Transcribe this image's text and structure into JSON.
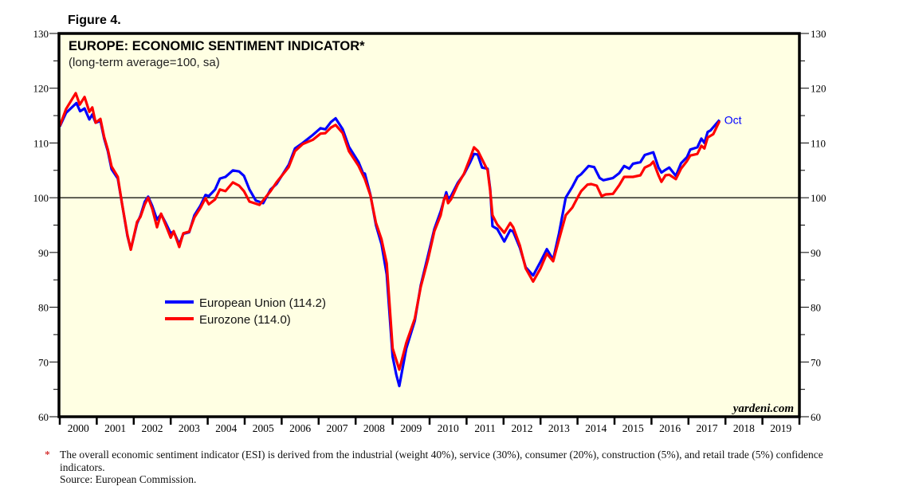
{
  "figure_label": "Figure 4.",
  "footnote_marker": "*",
  "footnote": "The overall economic sentiment indicator (ESI) is derived from the industrial (weight 40%), service (30%), consumer (20%), construction (5%), and retail trade (5%) confidence indicators.",
  "source": "Source: European Commission.",
  "watermark": "yardeni.com",
  "chart_data": {
    "type": "line",
    "title": "EUROPE: ECONOMIC SENTIMENT INDICATOR*",
    "subtitle": "(long-term average=100, sa)",
    "xlabel": "",
    "ylabel": "",
    "ylim": [
      60,
      130
    ],
    "xlim": [
      2000,
      2020
    ],
    "y_ticks": [
      60,
      70,
      80,
      90,
      100,
      110,
      120,
      130
    ],
    "x_tick_labels": [
      "2000",
      "2001",
      "2002",
      "2003",
      "2004",
      "2005",
      "2006",
      "2007",
      "2008",
      "2009",
      "2010",
      "2011",
      "2012",
      "2013",
      "2014",
      "2015",
      "2016",
      "2017",
      "2018",
      "2019"
    ],
    "reference_line": 100,
    "last_point_label": "Oct",
    "legend_placement": "center-left",
    "colors": {
      "background": "#FFFFE3",
      "eu": "#0000FF",
      "ez": "#FF0000"
    },
    "series": [
      {
        "name": "European Union (114.2)",
        "color": "#0000FF",
        "points": [
          [
            2000.0,
            113
          ],
          [
            2000.17,
            115.5
          ],
          [
            2000.45,
            117.3
          ],
          [
            2000.55,
            115.8
          ],
          [
            2000.67,
            116.3
          ],
          [
            2000.8,
            114.3
          ],
          [
            2000.88,
            115.2
          ],
          [
            2000.97,
            113.7
          ],
          [
            2001.1,
            114.0
          ],
          [
            2001.2,
            110.8
          ],
          [
            2001.3,
            108.5
          ],
          [
            2001.4,
            105.2
          ],
          [
            2001.57,
            103.5
          ],
          [
            2001.68,
            99
          ],
          [
            2001.83,
            93
          ],
          [
            2001.92,
            90.6
          ],
          [
            2002.09,
            95.3
          ],
          [
            2002.18,
            96.7
          ],
          [
            2002.3,
            99.3
          ],
          [
            2002.39,
            100.2
          ],
          [
            2002.5,
            98.5
          ],
          [
            2002.63,
            96.0
          ],
          [
            2002.74,
            97.0
          ],
          [
            2002.87,
            95.3
          ],
          [
            2003.0,
            93.5
          ],
          [
            2003.08,
            93.8
          ],
          [
            2003.23,
            91.5
          ],
          [
            2003.34,
            93.4
          ],
          [
            2003.5,
            93.7
          ],
          [
            2003.64,
            96.8
          ],
          [
            2003.8,
            98.5
          ],
          [
            2003.94,
            100.5
          ],
          [
            2004.03,
            100.3
          ],
          [
            2004.2,
            101.5
          ],
          [
            2004.33,
            103.5
          ],
          [
            2004.48,
            103.8
          ],
          [
            2004.6,
            104.5
          ],
          [
            2004.68,
            105.0
          ],
          [
            2004.85,
            104.8
          ],
          [
            2004.98,
            104.0
          ],
          [
            2005.13,
            101.5
          ],
          [
            2005.3,
            99.5
          ],
          [
            2005.5,
            99.0
          ],
          [
            2005.7,
            101.5
          ],
          [
            2005.86,
            102.5
          ],
          [
            2006.19,
            106
          ],
          [
            2006.36,
            109
          ],
          [
            2006.57,
            110
          ],
          [
            2006.85,
            111.5
          ],
          [
            2007.05,
            112.7
          ],
          [
            2007.18,
            112.5
          ],
          [
            2007.33,
            113.8
          ],
          [
            2007.46,
            114.5
          ],
          [
            2007.65,
            112.5
          ],
          [
            2007.82,
            109.3
          ],
          [
            2008.08,
            106.5
          ],
          [
            2008.2,
            104.5
          ],
          [
            2008.25,
            104.4
          ],
          [
            2008.4,
            100.5
          ],
          [
            2008.55,
            95
          ],
          [
            2008.7,
            91.5
          ],
          [
            2008.84,
            86
          ],
          [
            2009.0,
            71
          ],
          [
            2009.1,
            67.7
          ],
          [
            2009.18,
            65.6
          ],
          [
            2009.37,
            72.5
          ],
          [
            2009.6,
            77.5
          ],
          [
            2009.76,
            84
          ],
          [
            2009.96,
            89.5
          ],
          [
            2010.13,
            94.3
          ],
          [
            2010.3,
            97.5
          ],
          [
            2010.45,
            101
          ],
          [
            2010.5,
            99.8
          ],
          [
            2010.58,
            100.3
          ],
          [
            2010.76,
            102.7
          ],
          [
            2010.93,
            104.3
          ],
          [
            2011.1,
            106.5
          ],
          [
            2011.2,
            108
          ],
          [
            2011.3,
            107.9
          ],
          [
            2011.42,
            105.5
          ],
          [
            2011.57,
            105.3
          ],
          [
            2011.64,
            101.5
          ],
          [
            2011.7,
            94.8
          ],
          [
            2011.83,
            94.3
          ],
          [
            2012.02,
            92.0
          ],
          [
            2012.18,
            94.1
          ],
          [
            2012.26,
            93.8
          ],
          [
            2012.44,
            90.9
          ],
          [
            2012.6,
            87.3
          ],
          [
            2012.8,
            85.8
          ],
          [
            2013.0,
            88.3
          ],
          [
            2013.17,
            90.6
          ],
          [
            2013.34,
            88.7
          ],
          [
            2013.5,
            93.5
          ],
          [
            2013.68,
            100
          ],
          [
            2013.86,
            102
          ],
          [
            2014.0,
            103.8
          ],
          [
            2014.1,
            104.3
          ],
          [
            2014.3,
            105.8
          ],
          [
            2014.45,
            105.6
          ],
          [
            2014.6,
            103.6
          ],
          [
            2014.7,
            103.2
          ],
          [
            2014.96,
            103.6
          ],
          [
            2015.13,
            104.5
          ],
          [
            2015.26,
            105.8
          ],
          [
            2015.4,
            105.3
          ],
          [
            2015.5,
            106.2
          ],
          [
            2015.7,
            106.5
          ],
          [
            2015.82,
            107.8
          ],
          [
            2016.05,
            108.3
          ],
          [
            2016.19,
            105.5
          ],
          [
            2016.27,
            104.6
          ],
          [
            2016.38,
            105.1
          ],
          [
            2016.48,
            105.5
          ],
          [
            2016.66,
            104.0
          ],
          [
            2016.8,
            106.3
          ],
          [
            2016.96,
            107.4
          ],
          [
            2017.05,
            108.8
          ],
          [
            2017.24,
            109.2
          ],
          [
            2017.35,
            110.8
          ],
          [
            2017.43,
            110.0
          ],
          [
            2017.52,
            112.0
          ],
          [
            2017.6,
            112.3
          ],
          [
            2017.84,
            114.2
          ]
        ]
      },
      {
        "name": "Eurozone (114.0)",
        "color": "#FF0000",
        "points": [
          [
            2000.0,
            113.1
          ],
          [
            2000.17,
            116.2
          ],
          [
            2000.43,
            119.1
          ],
          [
            2000.54,
            117.0
          ],
          [
            2000.67,
            118.4
          ],
          [
            2000.8,
            115.7
          ],
          [
            2000.88,
            116.5
          ],
          [
            2000.97,
            113.7
          ],
          [
            2001.1,
            114.4
          ],
          [
            2001.2,
            111.1
          ],
          [
            2001.3,
            108.8
          ],
          [
            2001.4,
            105.7
          ],
          [
            2001.57,
            103.8
          ],
          [
            2001.68,
            99.0
          ],
          [
            2001.83,
            93.2
          ],
          [
            2001.92,
            90.5
          ],
          [
            2002.09,
            95.6
          ],
          [
            2002.18,
            96.5
          ],
          [
            2002.3,
            98.8
          ],
          [
            2002.39,
            100
          ],
          [
            2002.5,
            98
          ],
          [
            2002.63,
            94.6
          ],
          [
            2002.74,
            97.1
          ],
          [
            2002.87,
            94.9
          ],
          [
            2003.0,
            92.7
          ],
          [
            2003.08,
            93.9
          ],
          [
            2003.23,
            91
          ],
          [
            2003.34,
            93.5
          ],
          [
            2003.5,
            93.8
          ],
          [
            2003.64,
            96.4
          ],
          [
            2003.8,
            98.1
          ],
          [
            2003.94,
            99.9
          ],
          [
            2004.03,
            98.8
          ],
          [
            2004.2,
            99.7
          ],
          [
            2004.33,
            101.5
          ],
          [
            2004.48,
            101.2
          ],
          [
            2004.68,
            102.8
          ],
          [
            2004.85,
            102.2
          ],
          [
            2004.98,
            101.2
          ],
          [
            2005.13,
            99.3
          ],
          [
            2005.4,
            98.7
          ],
          [
            2005.7,
            101.2
          ],
          [
            2005.86,
            102.8
          ],
          [
            2006.19,
            105.6
          ],
          [
            2006.36,
            108.5
          ],
          [
            2006.57,
            109.8
          ],
          [
            2006.85,
            110.6
          ],
          [
            2007.05,
            111.7
          ],
          [
            2007.18,
            111.8
          ],
          [
            2007.33,
            112.8
          ],
          [
            2007.46,
            113.3
          ],
          [
            2007.65,
            111.8
          ],
          [
            2007.82,
            108.5
          ],
          [
            2008.08,
            105.8
          ],
          [
            2008.25,
            103.4
          ],
          [
            2008.4,
            100.4
          ],
          [
            2008.55,
            95.4
          ],
          [
            2008.7,
            92.4
          ],
          [
            2008.84,
            88
          ],
          [
            2009.0,
            72.5
          ],
          [
            2009.18,
            68.6
          ],
          [
            2009.37,
            73.5
          ],
          [
            2009.6,
            77.9
          ],
          [
            2009.76,
            83.7
          ],
          [
            2009.96,
            88.8
          ],
          [
            2010.13,
            93.9
          ],
          [
            2010.3,
            96.8
          ],
          [
            2010.39,
            99.7
          ],
          [
            2010.45,
            100.4
          ],
          [
            2010.5,
            99
          ],
          [
            2010.58,
            99.7
          ],
          [
            2010.76,
            102.4
          ],
          [
            2010.93,
            104.4
          ],
          [
            2011.1,
            107.3
          ],
          [
            2011.2,
            109.2
          ],
          [
            2011.31,
            108.5
          ],
          [
            2011.42,
            107
          ],
          [
            2011.57,
            105
          ],
          [
            2011.64,
            101.2
          ],
          [
            2011.7,
            96.8
          ],
          [
            2011.83,
            95.1
          ],
          [
            2012.02,
            93.6
          ],
          [
            2012.18,
            95.4
          ],
          [
            2012.26,
            94.6
          ],
          [
            2012.44,
            91.3
          ],
          [
            2012.6,
            87.1
          ],
          [
            2012.8,
            84.7
          ],
          [
            2013.0,
            87.1
          ],
          [
            2013.17,
            89.8
          ],
          [
            2013.34,
            88.4
          ],
          [
            2013.5,
            92.4
          ],
          [
            2013.68,
            96.8
          ],
          [
            2013.86,
            98.2
          ],
          [
            2014.0,
            100
          ],
          [
            2014.1,
            101.2
          ],
          [
            2014.27,
            102.4
          ],
          [
            2014.37,
            102.5
          ],
          [
            2014.52,
            102.2
          ],
          [
            2014.65,
            100.3
          ],
          [
            2014.76,
            100.6
          ],
          [
            2014.96,
            100.7
          ],
          [
            2015.13,
            102.3
          ],
          [
            2015.26,
            103.8
          ],
          [
            2015.5,
            103.8
          ],
          [
            2015.7,
            104.1
          ],
          [
            2015.82,
            105.5
          ],
          [
            2015.97,
            106
          ],
          [
            2016.05,
            106.6
          ],
          [
            2016.19,
            104.1
          ],
          [
            2016.27,
            102.9
          ],
          [
            2016.38,
            104.1
          ],
          [
            2016.48,
            104.2
          ],
          [
            2016.66,
            103.4
          ],
          [
            2016.8,
            105.3
          ],
          [
            2016.96,
            106.7
          ],
          [
            2017.05,
            107.7
          ],
          [
            2017.24,
            108
          ],
          [
            2017.35,
            109.5
          ],
          [
            2017.43,
            109
          ],
          [
            2017.52,
            111
          ],
          [
            2017.67,
            111.6
          ],
          [
            2017.84,
            114.0
          ]
        ]
      }
    ]
  }
}
